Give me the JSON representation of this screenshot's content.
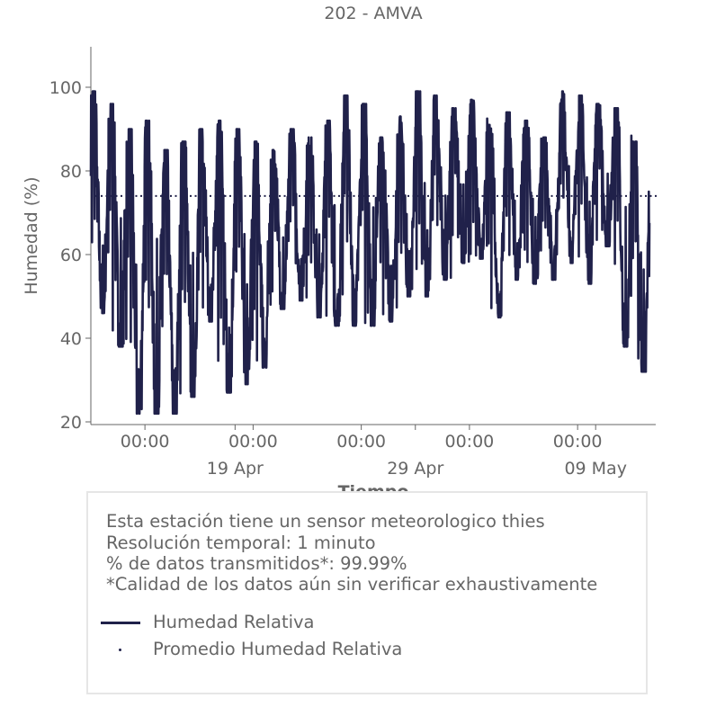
{
  "chart_data": {
    "type": "line",
    "title": "202 - AMVA",
    "xlabel": "Tiempo",
    "ylabel": "Humedad (%)",
    "ylim": [
      20,
      110
    ],
    "xlim": [
      "2024-04-11T00:00",
      "2024-05-12T08:00"
    ],
    "y_ticks": [
      20,
      40,
      60,
      80,
      100
    ],
    "x_ticks": [
      {
        "at": "2024-04-14T00:00",
        "label": "00:00"
      },
      {
        "at": "2024-04-20T00:00",
        "label": "00:00"
      },
      {
        "at": "2024-04-26T00:00",
        "label": "00:00"
      },
      {
        "at": "2024-05-02T00:00",
        "label": "00:00"
      },
      {
        "at": "2024-05-08T00:00",
        "label": "00:00"
      }
    ],
    "x_major_ticks": [
      {
        "at": "2024-04-19T00:00",
        "label": "19 Apr"
      },
      {
        "at": "2024-04-29T00:00",
        "label": "29 Apr"
      },
      {
        "at": "2024-05-09T00:00",
        "label": "09 May"
      }
    ],
    "grid": false,
    "series": [
      {
        "name": "Humedad Relativa",
        "style": "solid",
        "color": "#20214a",
        "x": [
          "2024-04-11",
          "2024-04-12",
          "2024-04-13",
          "2024-04-14",
          "2024-04-15",
          "2024-04-16",
          "2024-04-17",
          "2024-04-18",
          "2024-04-19",
          "2024-04-20",
          "2024-04-21",
          "2024-04-22",
          "2024-04-23",
          "2024-04-24",
          "2024-04-25",
          "2024-04-26",
          "2024-04-27",
          "2024-04-28",
          "2024-04-29",
          "2024-04-30",
          "2024-05-01",
          "2024-05-02",
          "2024-05-03",
          "2024-05-04",
          "2024-05-05",
          "2024-05-06",
          "2024-05-07",
          "2024-05-08",
          "2024-05-09",
          "2024-05-10",
          "2024-05-11"
        ],
        "daily_max": [
          99,
          96,
          90,
          92,
          85,
          87,
          90,
          92,
          90,
          87,
          85,
          90,
          88,
          92,
          98,
          96,
          88,
          93,
          99,
          98,
          95,
          97,
          91,
          94,
          92,
          88,
          99,
          98,
          96,
          95,
          87
        ],
        "daily_min": [
          46,
          38,
          22,
          22,
          22,
          26,
          44,
          27,
          29,
          33,
          47,
          49,
          45,
          43,
          43,
          43,
          44,
          50,
          50,
          54,
          58,
          59,
          45,
          54,
          53,
          54,
          58,
          53,
          62,
          38,
          32
        ]
      },
      {
        "name": "Promedio Humedad Relativa",
        "style": "dotted",
        "color": "#20214a",
        "y": 74
      }
    ]
  },
  "info": {
    "lines": [
      "Esta estación tiene un sensor meteorologico thies",
      "Resolución temporal: 1 minuto",
      "% de datos transmitidos*: 99.99%",
      "*Calidad de los datos aún sin verificar exhaustivamente"
    ],
    "legend": [
      {
        "label": "Humedad Relativa",
        "marker": "line"
      },
      {
        "label": "Promedio Humedad Relativa",
        "marker": "dot"
      }
    ]
  }
}
